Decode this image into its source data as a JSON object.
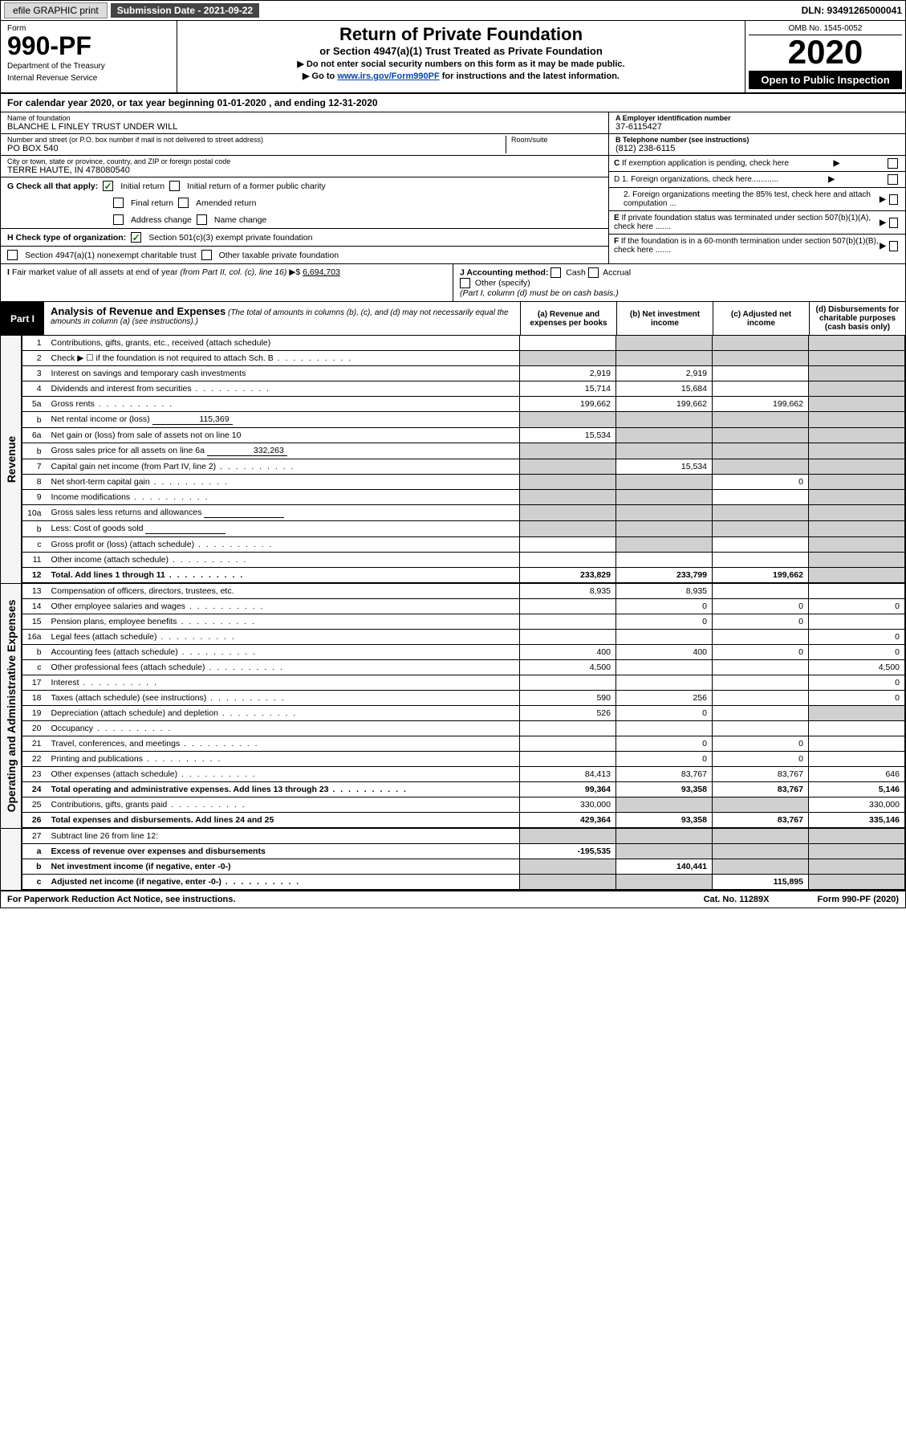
{
  "topBar": {
    "efile": "efile GRAPHIC print",
    "subDate": "Submission Date - 2021-09-22",
    "dln": "DLN: 93491265000041"
  },
  "header": {
    "formLabel": "Form",
    "formNo": "990-PF",
    "dept": "Department of the Treasury",
    "irs": "Internal Revenue Service",
    "title": "Return of Private Foundation",
    "subtitle": "or Section 4947(a)(1) Trust Treated as Private Foundation",
    "note1": "▶ Do not enter social security numbers on this form as it may be made public.",
    "note2pre": "▶ Go to ",
    "note2link": "www.irs.gov/Form990PF",
    "note2post": " for instructions and the latest information.",
    "omb": "OMB No. 1545-0052",
    "year": "2020",
    "openPub": "Open to Public Inspection"
  },
  "calYear": {
    "pre": "For calendar year 2020, or tax year beginning ",
    "begin": "01-01-2020",
    "mid": " , and ending ",
    "end": "12-31-2020"
  },
  "entity": {
    "nameLabel": "Name of foundation",
    "name": "BLANCHE L FINLEY TRUST UNDER WILL",
    "addrLabel": "Number and street (or P.O. box number if mail is not delivered to street address)",
    "addr": "PO BOX 540",
    "roomLabel": "Room/suite",
    "cityLabel": "City or town, state or province, country, and ZIP or foreign postal code",
    "city": "TERRE HAUTE, IN  478080540",
    "einLabel": "A Employer identification number",
    "ein": "37-6115427",
    "phoneLabel": "B Telephone number (see instructions)",
    "phone": "(812) 238-6115",
    "cLabel": "C If exemption application is pending, check here",
    "d1": "D 1. Foreign organizations, check here............",
    "d2": "2. Foreign organizations meeting the 85% test, check here and attach computation ...",
    "eLabel": "E If private foundation status was terminated under section 507(b)(1)(A), check here .......",
    "fLabel": "F If the foundation is in a 60-month termination under section 507(b)(1)(B), check here ......."
  },
  "gSection": {
    "label": "G Check all that apply:",
    "opts": [
      "Initial return",
      "Initial return of a former public charity",
      "Final return",
      "Amended return",
      "Address change",
      "Name change"
    ]
  },
  "hSection": {
    "label": "H Check type of organization:",
    "opt1": "Section 501(c)(3) exempt private foundation",
    "opt2": "Section 4947(a)(1) nonexempt charitable trust",
    "opt3": "Other taxable private foundation"
  },
  "iSection": {
    "label": "I Fair market value of all assets at end of year (from Part II, col. (c), line 16) ▶$ ",
    "value": "6,694,703"
  },
  "jSection": {
    "label": "J Accounting method:",
    "cash": "Cash",
    "accrual": "Accrual",
    "other": "Other (specify)",
    "note": "(Part I, column (d) must be on cash basis.)"
  },
  "part1": {
    "tag": "Part I",
    "title": "Analysis of Revenue and Expenses",
    "note": " (The total of amounts in columns (b), (c), and (d) may not necessarily equal the amounts in column (a) (see instructions).)",
    "colA": "(a) Revenue and expenses per books",
    "colB": "(b) Net investment income",
    "colC": "(c) Adjusted net income",
    "colD": "(d) Disbursements for charitable purposes (cash basis only)"
  },
  "sideLabels": {
    "revenue": "Revenue",
    "expenses": "Operating and Administrative Expenses"
  },
  "lines": [
    {
      "n": "1",
      "lbl": "Contributions, gifts, grants, etc., received (attach schedule)",
      "a": "",
      "b": "",
      "c": "",
      "d": "",
      "aShade": false,
      "bShade": true,
      "cShade": true,
      "dShade": true
    },
    {
      "n": "2",
      "lbl": "Check ▶ ☐ if the foundation is not required to attach Sch. B",
      "a": "",
      "b": "",
      "c": "",
      "d": "",
      "aShade": true,
      "bShade": true,
      "cShade": true,
      "dShade": true,
      "dots": true
    },
    {
      "n": "3",
      "lbl": "Interest on savings and temporary cash investments",
      "a": "2,919",
      "b": "2,919",
      "c": "",
      "d": "",
      "dShade": true
    },
    {
      "n": "4",
      "lbl": "Dividends and interest from securities",
      "a": "15,714",
      "b": "15,684",
      "c": "",
      "d": "",
      "dShade": true,
      "dots": true
    },
    {
      "n": "5a",
      "lbl": "Gross rents",
      "a": "199,662",
      "b": "199,662",
      "c": "199,662",
      "d": "",
      "dShade": true,
      "dots": true
    },
    {
      "n": "b",
      "lbl": "Net rental income or (loss)",
      "inline": "115,369",
      "aShade": true,
      "bShade": true,
      "cShade": true,
      "dShade": true
    },
    {
      "n": "6a",
      "lbl": "Net gain or (loss) from sale of assets not on line 10",
      "a": "15,534",
      "b": "",
      "c": "",
      "d": "",
      "bShade": true,
      "cShade": true,
      "dShade": true
    },
    {
      "n": "b",
      "lbl": "Gross sales price for all assets on line 6a",
      "inline": "332,263",
      "aShade": true,
      "bShade": true,
      "cShade": true,
      "dShade": true
    },
    {
      "n": "7",
      "lbl": "Capital gain net income (from Part IV, line 2)",
      "a": "",
      "b": "15,534",
      "c": "",
      "d": "",
      "aShade": true,
      "cShade": true,
      "dShade": true,
      "dots": true
    },
    {
      "n": "8",
      "lbl": "Net short-term capital gain",
      "a": "",
      "b": "",
      "c": "0",
      "d": "",
      "aShade": true,
      "bShade": true,
      "dShade": true,
      "dots": true
    },
    {
      "n": "9",
      "lbl": "Income modifications",
      "a": "",
      "b": "",
      "c": "",
      "d": "",
      "aShade": true,
      "bShade": true,
      "dShade": true,
      "dots": true
    },
    {
      "n": "10a",
      "lbl": "Gross sales less returns and allowances",
      "inlineBox": true,
      "aShade": true,
      "bShade": true,
      "cShade": true,
      "dShade": true
    },
    {
      "n": "b",
      "lbl": "Less: Cost of goods sold",
      "inlineBox": true,
      "aShade": true,
      "bShade": true,
      "cShade": true,
      "dShade": true,
      "dots": true
    },
    {
      "n": "c",
      "lbl": "Gross profit or (loss) (attach schedule)",
      "a": "",
      "b": "",
      "c": "",
      "d": "",
      "bShade": true,
      "dShade": true,
      "dots": true
    },
    {
      "n": "11",
      "lbl": "Other income (attach schedule)",
      "a": "",
      "b": "",
      "c": "",
      "d": "",
      "dShade": true,
      "dots": true
    },
    {
      "n": "12",
      "lbl": "Total. Add lines 1 through 11",
      "a": "233,829",
      "b": "233,799",
      "c": "199,662",
      "d": "",
      "dShade": true,
      "bold": true,
      "dots": true
    }
  ],
  "expLines": [
    {
      "n": "13",
      "lbl": "Compensation of officers, directors, trustees, etc.",
      "a": "8,935",
      "b": "8,935",
      "c": "",
      "d": ""
    },
    {
      "n": "14",
      "lbl": "Other employee salaries and wages",
      "a": "",
      "b": "0",
      "c": "0",
      "d": "0",
      "dots": true
    },
    {
      "n": "15",
      "lbl": "Pension plans, employee benefits",
      "a": "",
      "b": "0",
      "c": "0",
      "d": "",
      "dots": true
    },
    {
      "n": "16a",
      "lbl": "Legal fees (attach schedule)",
      "a": "",
      "b": "",
      "c": "",
      "d": "0",
      "dots": true
    },
    {
      "n": "b",
      "lbl": "Accounting fees (attach schedule)",
      "a": "400",
      "b": "400",
      "c": "0",
      "d": "0",
      "dots": true
    },
    {
      "n": "c",
      "lbl": "Other professional fees (attach schedule)",
      "a": "4,500",
      "b": "",
      "c": "",
      "d": "4,500",
      "dots": true
    },
    {
      "n": "17",
      "lbl": "Interest",
      "a": "",
      "b": "",
      "c": "",
      "d": "0",
      "dots": true
    },
    {
      "n": "18",
      "lbl": "Taxes (attach schedule) (see instructions)",
      "a": "590",
      "b": "256",
      "c": "",
      "d": "0",
      "dots": true
    },
    {
      "n": "19",
      "lbl": "Depreciation (attach schedule) and depletion",
      "a": "526",
      "b": "0",
      "c": "",
      "d": "",
      "dShade": true,
      "dots": true
    },
    {
      "n": "20",
      "lbl": "Occupancy",
      "a": "",
      "b": "",
      "c": "",
      "d": "",
      "dots": true
    },
    {
      "n": "21",
      "lbl": "Travel, conferences, and meetings",
      "a": "",
      "b": "0",
      "c": "0",
      "d": "",
      "dots": true
    },
    {
      "n": "22",
      "lbl": "Printing and publications",
      "a": "",
      "b": "0",
      "c": "0",
      "d": "",
      "dots": true
    },
    {
      "n": "23",
      "lbl": "Other expenses (attach schedule)",
      "a": "84,413",
      "b": "83,767",
      "c": "83,767",
      "d": "646",
      "dots": true
    },
    {
      "n": "24",
      "lbl": "Total operating and administrative expenses. Add lines 13 through 23",
      "a": "99,364",
      "b": "93,358",
      "c": "83,767",
      "d": "5,146",
      "bold": true,
      "dots": true
    },
    {
      "n": "25",
      "lbl": "Contributions, gifts, grants paid",
      "a": "330,000",
      "b": "",
      "c": "",
      "d": "330,000",
      "bShade": true,
      "cShade": true,
      "dots": true
    },
    {
      "n": "26",
      "lbl": "Total expenses and disbursements. Add lines 24 and 25",
      "a": "429,364",
      "b": "93,358",
      "c": "83,767",
      "d": "335,146",
      "bold": true
    }
  ],
  "line27": [
    {
      "n": "27",
      "lbl": "Subtract line 26 from line 12:",
      "a": "",
      "b": "",
      "c": "",
      "d": "",
      "aShade": true,
      "bShade": true,
      "cShade": true,
      "dShade": true
    },
    {
      "n": "a",
      "lbl": "Excess of revenue over expenses and disbursements",
      "a": "-195,535",
      "b": "",
      "c": "",
      "d": "",
      "bShade": true,
      "cShade": true,
      "dShade": true,
      "bold": true
    },
    {
      "n": "b",
      "lbl": "Net investment income (if negative, enter -0-)",
      "a": "",
      "b": "140,441",
      "c": "",
      "d": "",
      "aShade": true,
      "cShade": true,
      "dShade": true,
      "bold": true
    },
    {
      "n": "c",
      "lbl": "Adjusted net income (if negative, enter -0-)",
      "a": "",
      "b": "",
      "c": "115,895",
      "d": "",
      "aShade": true,
      "bShade": true,
      "dShade": true,
      "bold": true,
      "dots": true
    }
  ],
  "footer": {
    "left": "For Paperwork Reduction Act Notice, see instructions.",
    "mid": "Cat. No. 11289X",
    "right": "Form 990-PF (2020)"
  }
}
